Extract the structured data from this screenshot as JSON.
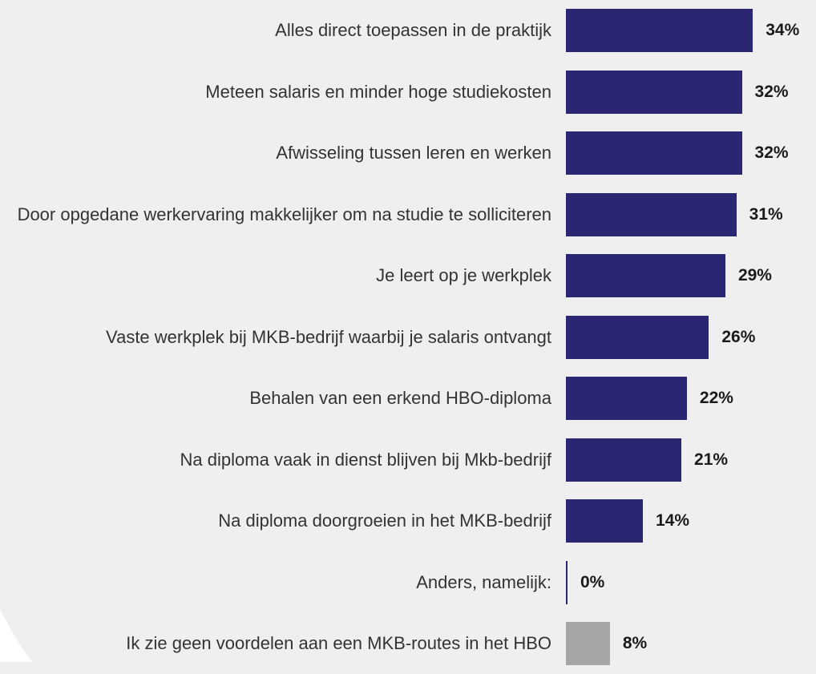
{
  "chart_data": {
    "type": "bar",
    "orientation": "horizontal",
    "categories": [
      "Alles  direct toepassen in de praktijk",
      "Meteen salaris en minder hoge studiekosten",
      "Afwisseling tussen leren en werken",
      "Door opgedane werkervaring makkelijker om na studie te solliciteren",
      "Je leert op je werkplek",
      "Vaste werkplek bij MKB-bedrijf waarbij je salaris ontvangt",
      "Behalen van een erkend HBO-diploma",
      "Na  diploma vaak in dienst blijven bij Mkb-bedrijf",
      "Na diploma doorgroeien in het MKB-bedrijf",
      "Anders, namelijk:",
      "Ik zie geen voordelen aan een MKB-routes in het HBO"
    ],
    "values": [
      34,
      32,
      32,
      31,
      29,
      26,
      22,
      21,
      14,
      0,
      8
    ],
    "value_labels": [
      "34%",
      "32%",
      "32%",
      "31%",
      "29%",
      "26%",
      "22%",
      "21%",
      "14%",
      "0%",
      "8%"
    ],
    "colors": [
      "#2b2672",
      "#2b2672",
      "#2b2672",
      "#2b2672",
      "#2b2672",
      "#2b2672",
      "#2b2672",
      "#2b2672",
      "#2b2672",
      "#2b2672",
      "#a6a6a6"
    ]
  }
}
